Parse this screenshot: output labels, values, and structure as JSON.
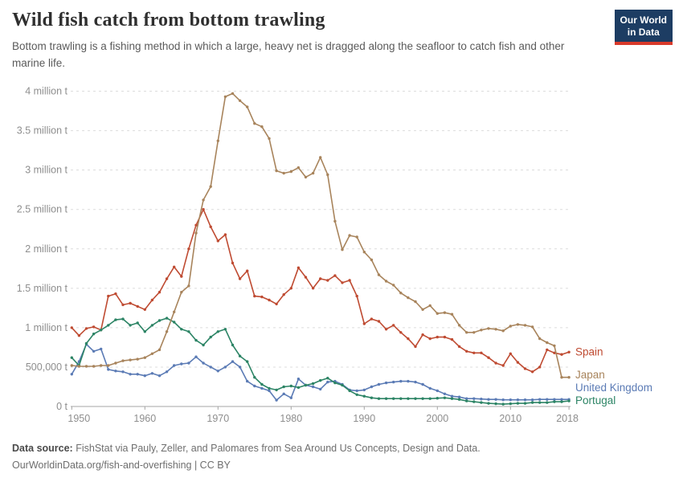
{
  "header": {
    "title": "Wild fish catch from bottom trawling",
    "subtitle": "Bottom trawling is a fishing method in which a large, heavy net is dragged along the seafloor to catch fish and other marine life."
  },
  "logo": {
    "line1": "Our World",
    "line2": "in Data",
    "bg_color": "#1d3d63",
    "accent_color": "#d93a2b"
  },
  "chart_data": {
    "type": "line",
    "title": "Wild fish catch from bottom trawling",
    "xlabel": "",
    "ylabel": "tonnes",
    "x_start": 1950,
    "x_end": 2018,
    "ylim": [
      0,
      4
    ],
    "grid": true,
    "legend_position": "end-of-line-labels",
    "values_unit": "million tonnes",
    "xticks": [
      "1950",
      "1960",
      "1970",
      "1980",
      "1990",
      "2000",
      "2010",
      "2018"
    ],
    "yticks": [
      {
        "value": 0,
        "label": "0 t"
      },
      {
        "value": 0.5,
        "label": "500,000 t"
      },
      {
        "value": 1,
        "label": "1 million t"
      },
      {
        "value": 1.5,
        "label": "1.5 million t"
      },
      {
        "value": 2,
        "label": "2 million t"
      },
      {
        "value": 2.5,
        "label": "2.5 million t"
      },
      {
        "value": 3,
        "label": "3 million t"
      },
      {
        "value": 3.5,
        "label": "3.5 million t"
      },
      {
        "value": 4,
        "label": "4 million t"
      }
    ],
    "series": [
      {
        "name": "Spain",
        "color": "#bf4b32",
        "values": [
          1.0,
          0.9,
          0.99,
          1.01,
          0.97,
          1.4,
          1.43,
          1.29,
          1.31,
          1.27,
          1.23,
          1.35,
          1.45,
          1.62,
          1.77,
          1.65,
          2.0,
          2.3,
          2.5,
          2.28,
          2.1,
          2.18,
          1.82,
          1.62,
          1.72,
          1.4,
          1.39,
          1.35,
          1.3,
          1.42,
          1.5,
          1.76,
          1.64,
          1.5,
          1.62,
          1.6,
          1.66,
          1.57,
          1.6,
          1.4,
          1.05,
          1.11,
          1.08,
          0.98,
          1.03,
          0.94,
          0.86,
          0.76,
          0.91,
          0.86,
          0.88,
          0.88,
          0.85,
          0.76,
          0.7,
          0.68,
          0.68,
          0.62,
          0.55,
          0.52,
          0.67,
          0.56,
          0.48,
          0.44,
          0.5,
          0.72,
          0.68,
          0.66,
          0.69
        ]
      },
      {
        "name": "Japan",
        "color": "#a8845c",
        "values": [
          0.52,
          0.51,
          0.51,
          0.51,
          0.52,
          0.52,
          0.55,
          0.58,
          0.59,
          0.6,
          0.62,
          0.67,
          0.72,
          0.95,
          1.2,
          1.45,
          1.53,
          2.2,
          2.62,
          2.79,
          3.37,
          3.93,
          3.97,
          3.88,
          3.8,
          3.59,
          3.55,
          3.4,
          2.99,
          2.96,
          2.98,
          3.03,
          2.91,
          2.96,
          3.16,
          2.94,
          2.35,
          1.99,
          2.17,
          2.15,
          1.96,
          1.86,
          1.67,
          1.59,
          1.54,
          1.44,
          1.38,
          1.33,
          1.23,
          1.28,
          1.18,
          1.19,
          1.17,
          1.03,
          0.94,
          0.94,
          0.97,
          0.99,
          0.98,
          0.96,
          1.02,
          1.04,
          1.03,
          1.01,
          0.86,
          0.81,
          0.77,
          0.37,
          0.37
        ]
      },
      {
        "name": "United Kingdom",
        "color": "#5b7bb5",
        "values": [
          0.41,
          0.57,
          0.79,
          0.7,
          0.73,
          0.47,
          0.45,
          0.44,
          0.41,
          0.41,
          0.39,
          0.42,
          0.39,
          0.44,
          0.52,
          0.54,
          0.55,
          0.63,
          0.55,
          0.5,
          0.45,
          0.5,
          0.57,
          0.5,
          0.32,
          0.26,
          0.23,
          0.2,
          0.08,
          0.16,
          0.11,
          0.35,
          0.27,
          0.25,
          0.22,
          0.31,
          0.32,
          0.28,
          0.21,
          0.2,
          0.21,
          0.25,
          0.28,
          0.3,
          0.31,
          0.32,
          0.32,
          0.31,
          0.28,
          0.23,
          0.2,
          0.16,
          0.13,
          0.12,
          0.1,
          0.1,
          0.095,
          0.09,
          0.09,
          0.085,
          0.085,
          0.085,
          0.085,
          0.085,
          0.09,
          0.09,
          0.09,
          0.09,
          0.09
        ]
      },
      {
        "name": "Portugal",
        "color": "#2c8465",
        "values": [
          0.62,
          0.52,
          0.8,
          0.92,
          0.97,
          1.03,
          1.1,
          1.11,
          1.03,
          1.06,
          0.95,
          1.03,
          1.09,
          1.12,
          1.07,
          0.98,
          0.95,
          0.84,
          0.78,
          0.88,
          0.95,
          0.98,
          0.78,
          0.64,
          0.57,
          0.37,
          0.28,
          0.23,
          0.21,
          0.25,
          0.26,
          0.24,
          0.27,
          0.29,
          0.33,
          0.36,
          0.3,
          0.27,
          0.2,
          0.15,
          0.13,
          0.11,
          0.1,
          0.1,
          0.1,
          0.1,
          0.1,
          0.1,
          0.1,
          0.1,
          0.105,
          0.11,
          0.1,
          0.09,
          0.07,
          0.06,
          0.05,
          0.04,
          0.035,
          0.03,
          0.035,
          0.04,
          0.04,
          0.05,
          0.05,
          0.05,
          0.06,
          0.06,
          0.07
        ]
      }
    ]
  },
  "footer": {
    "source_label": "Data source:",
    "source_text": " FishStat via Pauly, Zeller, and Palomares from Sea Around Us Concepts, Design and Data.",
    "license_line": "OurWorldinData.org/fish-and-overfishing | CC BY"
  }
}
